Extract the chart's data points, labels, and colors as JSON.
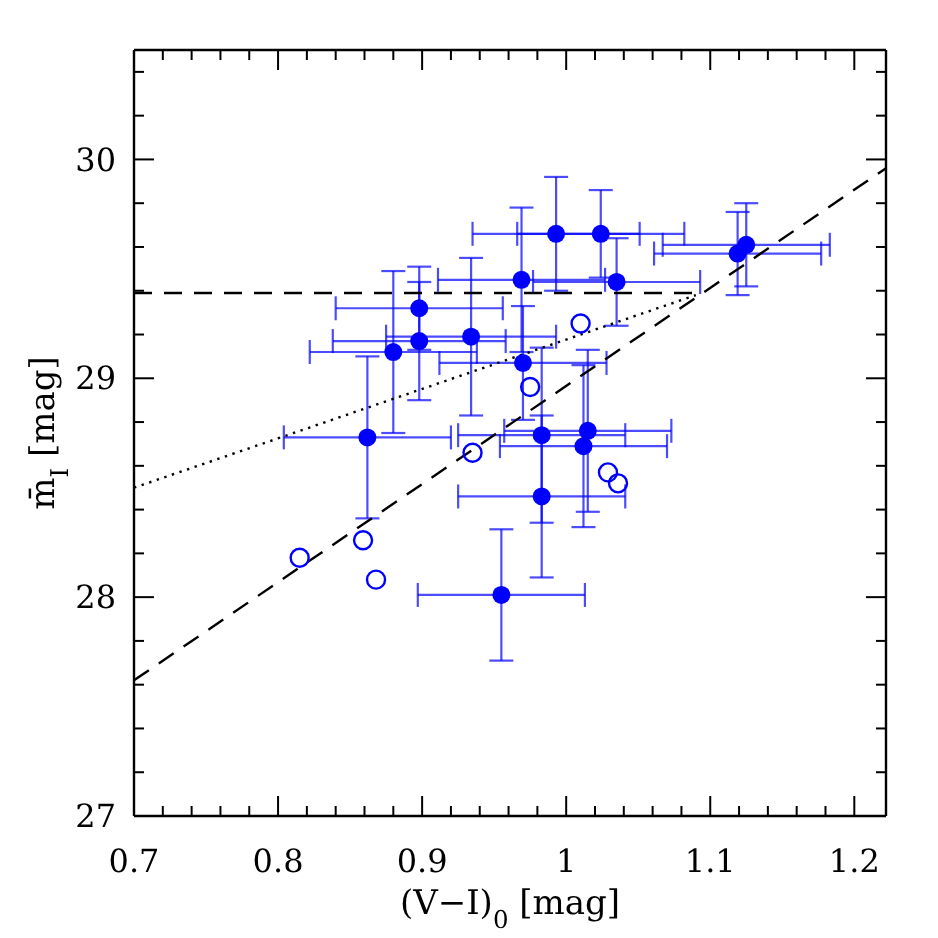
{
  "chart_data": {
    "type": "scatter",
    "xlabel": "(V−I)$_{0}$ [mag]",
    "ylabel": "m̄$_{I}$ [mag]",
    "xlim": [
      0.7,
      1.222
    ],
    "ylim": [
      27,
      30.5
    ],
    "xticks": [
      0.7,
      {
        "value": 0.72,
        "label": null
      },
      {
        "value": 0.74,
        "label": null
      },
      {
        "value": 0.76,
        "label": null
      },
      {
        "value": 0.78,
        "label": null
      },
      0.8,
      {
        "value": 0.82,
        "label": null
      },
      {
        "value": 0.84,
        "label": null
      },
      {
        "value": 0.86,
        "label": null
      },
      {
        "value": 0.88,
        "label": null
      },
      0.9,
      {
        "value": 0.92,
        "label": null
      },
      {
        "value": 0.94,
        "label": null
      },
      {
        "value": 0.96,
        "label": null
      },
      {
        "value": 0.98,
        "label": null
      },
      1,
      {
        "value": 1.02,
        "label": null
      },
      {
        "value": 1.04,
        "label": null
      },
      {
        "value": 1.06,
        "label": null
      },
      {
        "value": 1.08,
        "label": null
      },
      1.1,
      {
        "value": 1.12,
        "label": null
      },
      {
        "value": 1.14,
        "label": null
      },
      {
        "value": 1.16,
        "label": null
      },
      {
        "value": 1.18,
        "label": null
      },
      1.2
    ],
    "yticks": [
      27,
      {
        "value": 27.2,
        "label": null
      },
      {
        "value": 27.4,
        "label": null
      },
      {
        "value": 27.6,
        "label": null
      },
      {
        "value": 27.8,
        "label": null
      },
      28,
      {
        "value": 28.2,
        "label": null
      },
      {
        "value": 28.4,
        "label": null
      },
      {
        "value": 28.6,
        "label": null
      },
      {
        "value": 28.8,
        "label": null
      },
      29,
      {
        "value": 29.2,
        "label": null
      },
      {
        "value": 29.4,
        "label": null
      },
      {
        "value": 29.6,
        "label": null
      },
      {
        "value": 29.8,
        "label": null
      },
      30,
      {
        "value": 30.2,
        "label": null
      },
      {
        "value": 30.4,
        "label": null
      }
    ],
    "marker": "circle",
    "series": [
      {
        "type": "line",
        "color": "#000000",
        "x": [
          0.7,
          1.09
        ],
        "values": [
          29.39,
          29.39
        ],
        "line_style": "dashed",
        "marker": "none"
      },
      {
        "type": "line",
        "color": "#000000",
        "x": [
          0.7,
          1.222
        ],
        "values": [
          27.62,
          29.96
        ],
        "line_style": "dashed",
        "marker": "none"
      },
      {
        "type": "line",
        "color": "#000000",
        "x": [
          0.7,
          1.09
        ],
        "values": [
          28.5,
          29.38
        ],
        "line_style": "dotted",
        "marker": "none"
      },
      {
        "color": "#0000ff",
        "x": [
          0.862,
          0.88,
          0.898,
          0.898,
          0.934,
          0.955,
          0.969,
          0.97,
          0.983,
          0.983,
          0.993,
          1.012,
          1.015,
          1.024,
          1.035,
          1.119,
          1.125
        ],
        "values": [
          28.73,
          29.12,
          29.32,
          29.17,
          29.19,
          28.01,
          29.45,
          29.07,
          28.74,
          28.46,
          29.66,
          28.69,
          28.76,
          29.66,
          29.44,
          29.57,
          29.61
        ],
        "errors": [
          0.37,
          0.37,
          0.19,
          0.27,
          0.36,
          0.3,
          0.33,
          0.26,
          0.4,
          0.37,
          0.26,
          0.37,
          0.37,
          0.2,
          0.2,
          0.19,
          0.19
        ],
        "xerrors": [
          0.058,
          0.058,
          0.058,
          0.06,
          0.059,
          0.058,
          0.058,
          0.058,
          0.058,
          0.058,
          0.058,
          0.058,
          0.058,
          0.058,
          0.058,
          0.058,
          0.058
        ]
      },
      {
        "color": "#0000ff",
        "x": [
          0.815,
          0.859,
          0.868,
          0.935,
          0.975,
          1.01,
          1.029,
          1.036
        ],
        "values": [
          28.18,
          28.26,
          28.08,
          28.66,
          28.96,
          29.25,
          28.57,
          28.52
        ]
      }
    ]
  }
}
